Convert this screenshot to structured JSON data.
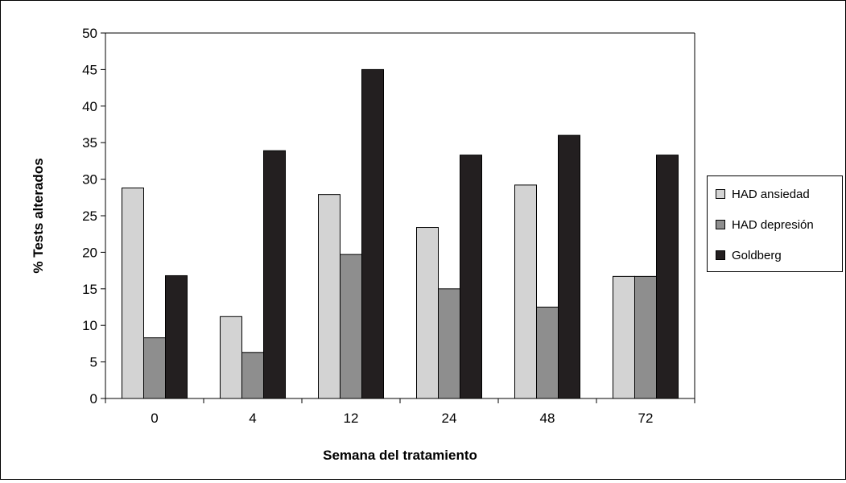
{
  "chart_data": {
    "type": "bar",
    "categories": [
      "0",
      "4",
      "12",
      "24",
      "48",
      "72"
    ],
    "series": [
      {
        "name": "HAD ansiedad",
        "values": [
          28.8,
          11.2,
          27.9,
          23.4,
          29.2,
          16.7
        ],
        "color": "#d3d3d3"
      },
      {
        "name": "HAD depresión",
        "values": [
          8.3,
          6.3,
          19.7,
          15.0,
          12.5,
          16.7
        ],
        "color": "#8e8e8e"
      },
      {
        "name": "Goldberg",
        "values": [
          16.8,
          33.9,
          45.0,
          33.3,
          36.0,
          33.3
        ],
        "color": "#231f20"
      }
    ],
    "xlabel": "Semana del tratamiento",
    "ylabel": "% Tests alterados",
    "ylim": [
      0,
      50
    ],
    "yticks": [
      "0",
      "5",
      "10",
      "15",
      "20",
      "25",
      "30",
      "35",
      "40",
      "45",
      "50"
    ],
    "grid": false,
    "legend_position": "right"
  }
}
